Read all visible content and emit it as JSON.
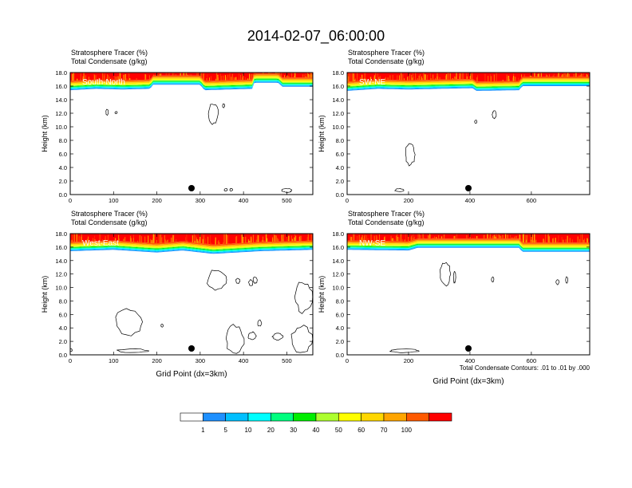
{
  "figure": {
    "title": "2014-02-07_06:00:00",
    "contour_note": "Total Condensate Contours: .01 to .01 by .000"
  },
  "colorbar": {
    "colors": [
      "#ffffff",
      "#1e90ff",
      "#00bfff",
      "#00ffff",
      "#00ff7f",
      "#00ee00",
      "#adff2f",
      "#ffff00",
      "#ffd700",
      "#ffa500",
      "#ff5a00",
      "#ff0000"
    ],
    "labels": [
      "1",
      "5",
      "10",
      "20",
      "30",
      "40",
      "50",
      "60",
      "70",
      "100"
    ]
  },
  "chart_data": [
    {
      "type": "heatmap",
      "label": "South-North",
      "subtitle_line1": "Stratosphere Tracer   (%)",
      "subtitle_line2": "Total Condensate   (g/kg)",
      "ylabel": "Height (km)",
      "xlabel": "",
      "xlim": [
        0,
        560
      ],
      "ylim": [
        0,
        18
      ],
      "xticks": [
        "0",
        "100",
        "200",
        "300",
        "400",
        "500"
      ],
      "yticks": [
        "0.0",
        "2.0",
        "4.0",
        "6.0",
        "8.0",
        "10.0",
        "12.0",
        "14.0",
        "16.0",
        "18.0"
      ],
      "marker_x": 280,
      "tracer_bottom_km": [
        [
          0,
          15.4
        ],
        [
          60,
          15.6
        ],
        [
          120,
          15.5
        ],
        [
          185,
          15.6
        ],
        [
          190,
          16.2
        ],
        [
          300,
          16.2
        ],
        [
          310,
          15.4
        ],
        [
          420,
          15.6
        ],
        [
          425,
          16.5
        ],
        [
          480,
          16.5
        ],
        [
          490,
          15.9
        ],
        [
          560,
          15.9
        ]
      ],
      "condensate_regions": [
        {
          "x": [
            82,
            88
          ],
          "y": [
            11.7,
            12.6
          ]
        },
        {
          "x": [
            104,
            108
          ],
          "y": [
            12.0,
            12.2
          ]
        },
        {
          "x": [
            318,
            342
          ],
          "y": [
            10.3,
            13.5
          ]
        },
        {
          "x": [
            352,
            356
          ],
          "y": [
            12.8,
            13.4
          ]
        },
        {
          "x": [
            355,
            363
          ],
          "y": [
            0.5,
            0.9
          ]
        },
        {
          "x": [
            368,
            375
          ],
          "y": [
            0.5,
            0.9
          ]
        },
        {
          "x": [
            488,
            512
          ],
          "y": [
            0.3,
            0.9
          ]
        }
      ]
    },
    {
      "type": "heatmap",
      "label": "SW-NE",
      "subtitle_line1": "Stratosphere Tracer   (%)",
      "subtitle_line2": "Total Condensate   (g/kg)",
      "ylabel": "Height (km)",
      "xlabel": "",
      "xlim": [
        0,
        790
      ],
      "ylim": [
        0,
        18
      ],
      "xticks": [
        "0",
        "200",
        "400",
        "600"
      ],
      "yticks": [
        "0.0",
        "2.0",
        "4.0",
        "6.0",
        "8.0",
        "10.0",
        "12.0",
        "14.0",
        "16.0",
        "18.0"
      ],
      "marker_x": 395,
      "tracer_bottom_km": [
        [
          0,
          15.3
        ],
        [
          100,
          15.6
        ],
        [
          200,
          15.5
        ],
        [
          300,
          15.6
        ],
        [
          410,
          15.7
        ],
        [
          420,
          15.3
        ],
        [
          560,
          15.4
        ],
        [
          570,
          16.0
        ],
        [
          790,
          16.0
        ]
      ],
      "condensate_regions": [
        {
          "x": [
            188,
            222
          ],
          "y": [
            4.3,
            7.5
          ]
        },
        {
          "x": [
            418,
            420
          ],
          "y": [
            10.5,
            11.0
          ]
        },
        {
          "x": [
            472,
            486
          ],
          "y": [
            11.2,
            12.4
          ]
        },
        {
          "x": [
            155,
            185
          ],
          "y": [
            0.4,
            0.9
          ]
        }
      ]
    },
    {
      "type": "heatmap",
      "label": "West-East",
      "subtitle_line1": "Stratosphere Tracer   (%)",
      "subtitle_line2": "Total Condensate   (g/kg)",
      "ylabel": "Height (km)",
      "xlabel": "Grid Point (dx=3km)",
      "xlim": [
        0,
        560
      ],
      "ylim": [
        0,
        18
      ],
      "xticks": [
        "0",
        "100",
        "200",
        "300",
        "400",
        "500"
      ],
      "yticks": [
        "0.0",
        "2.0",
        "4.0",
        "6.0",
        "8.0",
        "10.0",
        "12.0",
        "14.0",
        "16.0",
        "18.0"
      ],
      "marker_x": 280,
      "tracer_bottom_km": [
        [
          0,
          15.4
        ],
        [
          100,
          15.6
        ],
        [
          200,
          15.2
        ],
        [
          260,
          15.5
        ],
        [
          330,
          15.0
        ],
        [
          440,
          15.4
        ],
        [
          560,
          15.6
        ]
      ],
      "condensate_regions": [
        {
          "x": [
            315,
            362
          ],
          "y": [
            9.5,
            12.8
          ]
        },
        {
          "x": [
            382,
            392
          ],
          "y": [
            10.6,
            11.4
          ]
        },
        {
          "x": [
            412,
            422
          ],
          "y": [
            10.2,
            11.2
          ]
        },
        {
          "x": [
            422,
            432
          ],
          "y": [
            10.6,
            11.6
          ]
        },
        {
          "x": [
            102,
            168
          ],
          "y": [
            2.8,
            7.0
          ]
        },
        {
          "x": [
            210,
            214
          ],
          "y": [
            4.1,
            4.6
          ]
        },
        {
          "x": [
            518,
            560
          ],
          "y": [
            6.2,
            11.0
          ]
        },
        {
          "x": [
            358,
            402
          ],
          "y": [
            0.2,
            4.6
          ]
        },
        {
          "x": [
            410,
            430
          ],
          "y": [
            2.2,
            3.4
          ]
        },
        {
          "x": [
            432,
            442
          ],
          "y": [
            4.2,
            5.2
          ]
        },
        {
          "x": [
            466,
            492
          ],
          "y": [
            2.2,
            3.2
          ]
        },
        {
          "x": [
            510,
            560
          ],
          "y": [
            0.2,
            4.4
          ]
        },
        {
          "x": [
            106,
            182
          ],
          "y": [
            0.3,
            0.9
          ]
        },
        {
          "x": [
            0,
            4
          ],
          "y": [
            0.5,
            0.9
          ]
        }
      ]
    },
    {
      "type": "heatmap",
      "label": "NW-SE",
      "subtitle_line1": "Stratosphere Tracer   (%)",
      "subtitle_line2": "Total Condensate   (g/kg)",
      "ylabel": "Height (km)",
      "xlabel": "Grid Point (dx=3km)",
      "xlim": [
        0,
        790
      ],
      "ylim": [
        0,
        18
      ],
      "xticks": [
        "0",
        "200",
        "400",
        "600"
      ],
      "yticks": [
        "0.0",
        "2.0",
        "4.0",
        "6.0",
        "8.0",
        "10.0",
        "12.0",
        "14.0",
        "16.0",
        "18.0"
      ],
      "marker_x": 395,
      "tracer_bottom_km": [
        [
          0,
          15.6
        ],
        [
          200,
          15.5
        ],
        [
          230,
          15.9
        ],
        [
          560,
          15.9
        ],
        [
          570,
          15.3
        ],
        [
          790,
          15.3
        ]
      ],
      "condensate_regions": [
        {
          "x": [
            302,
            338
          ],
          "y": [
            10.2,
            13.8
          ]
        },
        {
          "x": [
            346,
            354
          ],
          "y": [
            10.6,
            12.4
          ]
        },
        {
          "x": [
            470,
            478
          ],
          "y": [
            10.8,
            11.6
          ]
        },
        {
          "x": [
            680,
            690
          ],
          "y": [
            10.4,
            11.2
          ]
        },
        {
          "x": [
            712,
            718
          ],
          "y": [
            10.6,
            11.6
          ]
        },
        {
          "x": [
            135,
            235
          ],
          "y": [
            0.3,
            0.9
          ]
        }
      ]
    }
  ]
}
